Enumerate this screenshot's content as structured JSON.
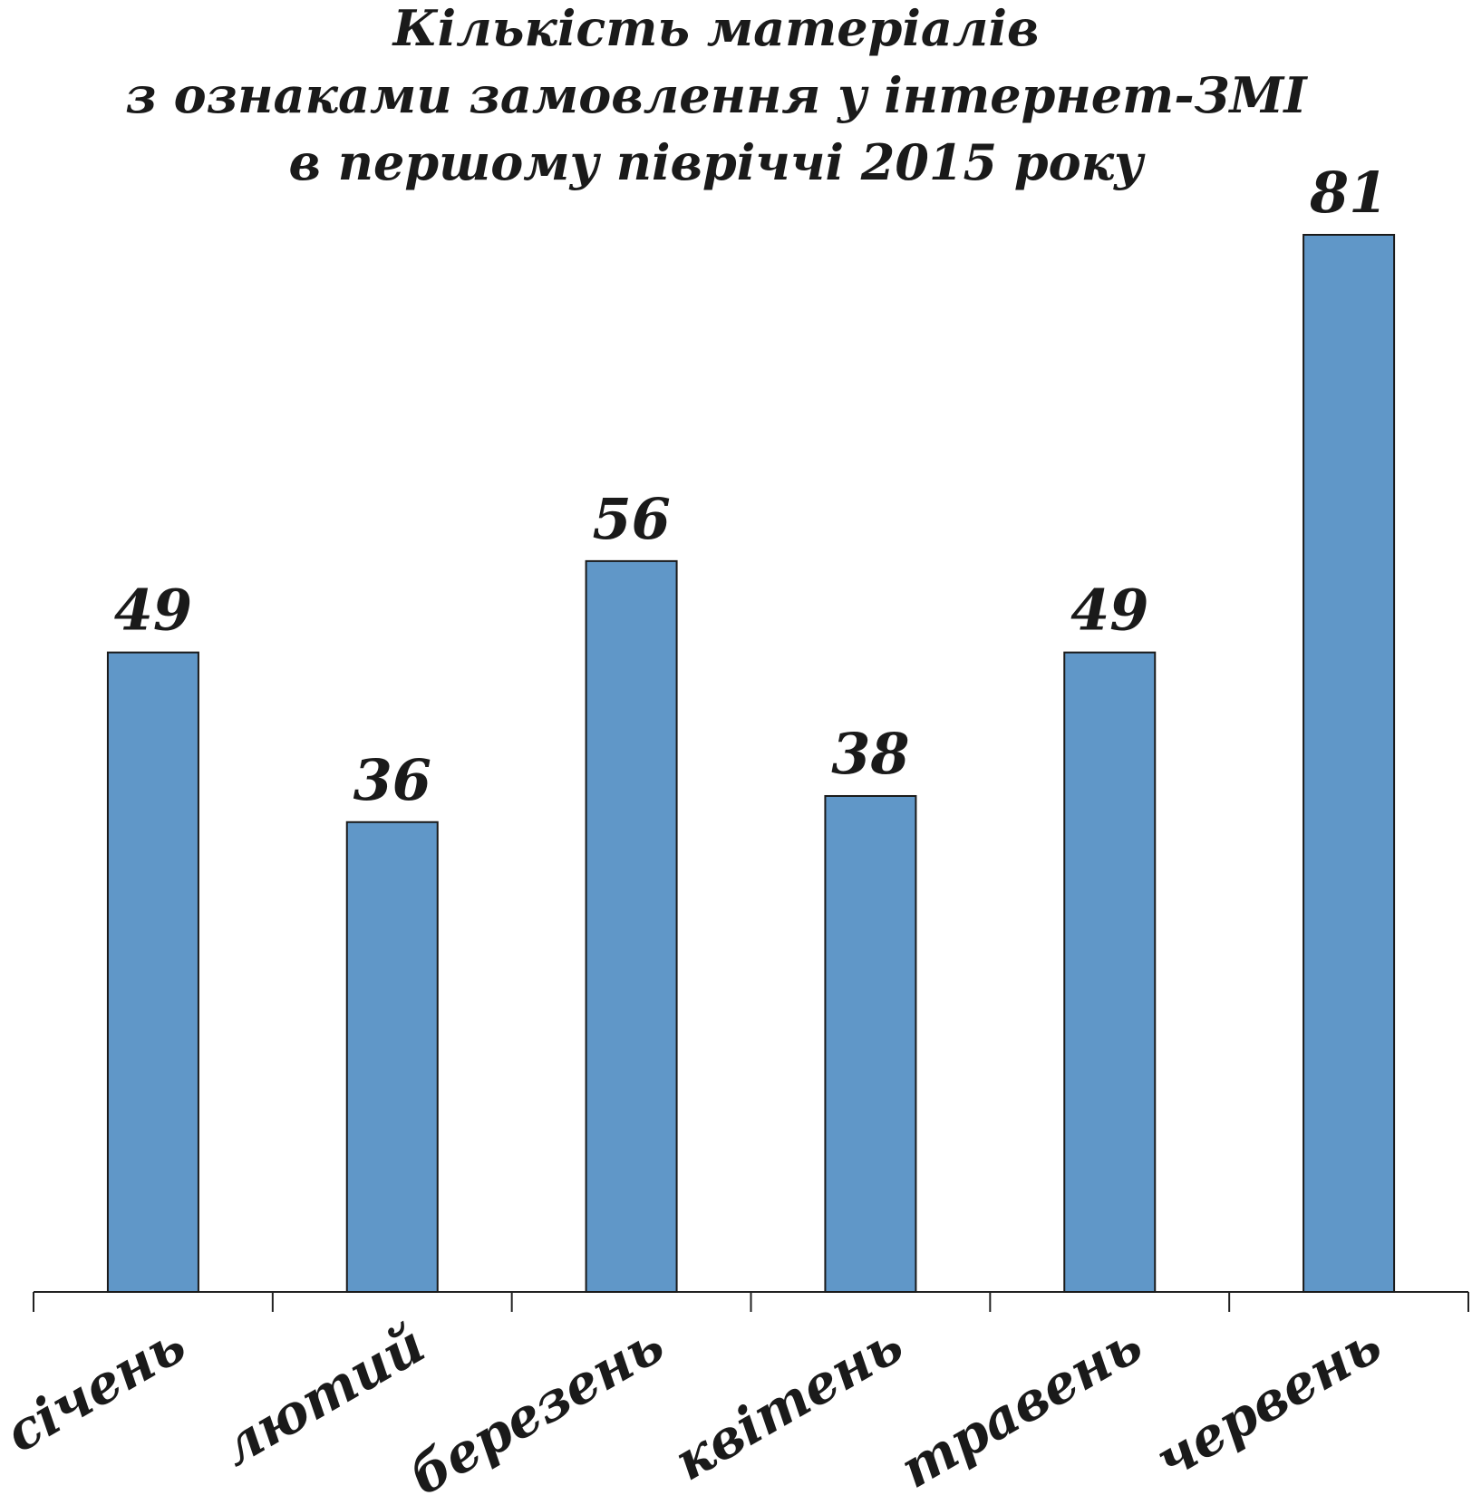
{
  "chart_data": {
    "type": "bar",
    "title": [
      "Кількість матеріалів",
      "з ознаками замовлення у інтернет-ЗМІ",
      "в першому півріччі 2015 року"
    ],
    "categories": [
      "січень",
      "лютий",
      "березень",
      "квітень",
      "травень",
      "червень"
    ],
    "values": [
      49,
      36,
      56,
      38,
      49,
      81
    ],
    "color": "#6097c8"
  }
}
